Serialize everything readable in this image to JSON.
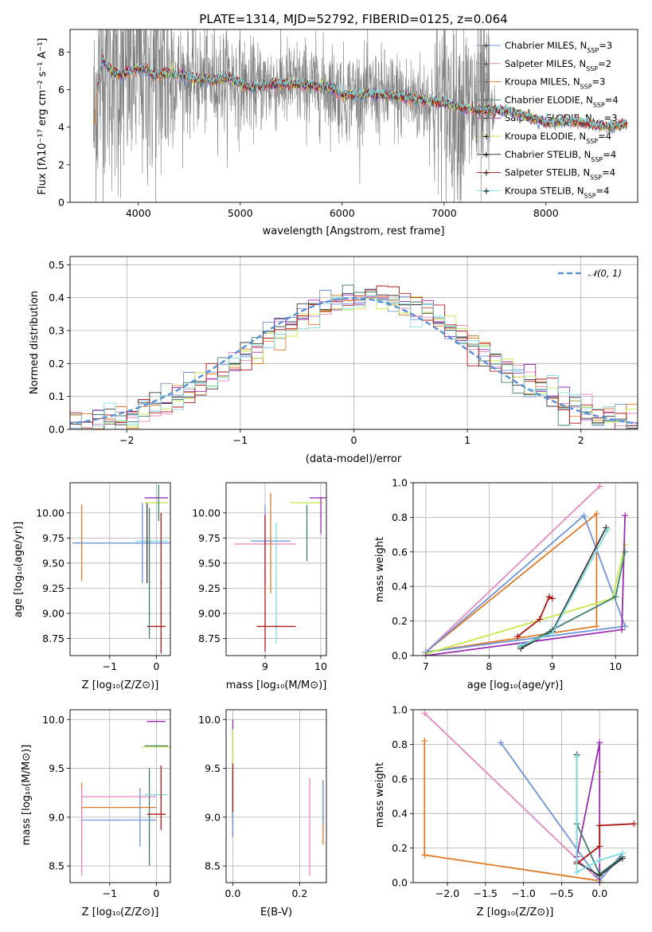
{
  "colors": {
    "chabrier_miles": "#6f94d8",
    "salpeter_miles": "#e58ac0",
    "kroupa_miles": "#e07b2a",
    "chabrier_elodie": "#3f7f6f",
    "salpeter_elodie": "#9a2fb0",
    "kroupa_elodie": "#c6e84a",
    "chabrier_stelib": "#3a3a3a",
    "salpeter_stelib": "#b01818",
    "kroupa_stelib": "#7fdde4",
    "data": "#808080",
    "gaussian": "#5a8fd6"
  },
  "legend": [
    {
      "label": "Chabrier MILES, N",
      "sub": "SSP",
      "tail": "=3",
      "color": "#6f94d8"
    },
    {
      "label": "Salpeter MILES, N",
      "sub": "SSP",
      "tail": "=2",
      "color": "#e58ac0"
    },
    {
      "label": "Kroupa MILES, N",
      "sub": "SSP",
      "tail": "=3",
      "color": "#e07b2a"
    },
    {
      "label": "Chabrier ELODIE, N",
      "sub": "SSP",
      "tail": "=4",
      "color": "#3f7f6f"
    },
    {
      "label": "Salpeter ELODIE, N",
      "sub": "SSP",
      "tail": "=3",
      "color": "#9a2fb0"
    },
    {
      "label": "Kroupa ELODIE, N",
      "sub": "SSP",
      "tail": "=4",
      "color": "#c6e84a"
    },
    {
      "label": "Chabrier STELIB, N",
      "sub": "SSP",
      "tail": "=4",
      "color": "#3a3a3a"
    },
    {
      "label": "Salpeter STELIB, N",
      "sub": "SSP",
      "tail": "=4",
      "color": "#b01818"
    },
    {
      "label": "Kroupa STELIB, N",
      "sub": "SSP",
      "tail": "=4",
      "color": "#7fdde4"
    }
  ],
  "chart_data": [
    {
      "id": "spectrum",
      "type": "line",
      "title": "PLATE=1314, MJD=52792, FIBERID=0125, z=0.064",
      "xlabel": "wavelength [Angstrom, rest frame]",
      "ylabel": "Flux [fλ10⁻¹⁷ erg cm⁻² s⁻¹ A⁻¹]",
      "xlim": [
        3330,
        8900
      ],
      "ylim": [
        0,
        9.2
      ],
      "xticks": [
        4000,
        5000,
        6000,
        7000,
        8000
      ],
      "yticks": [
        0,
        2,
        4,
        6,
        8
      ],
      "model_knots": [
        [
          3580,
          5.6
        ],
        [
          3650,
          7.6
        ],
        [
          3750,
          6.9
        ],
        [
          3850,
          6.8
        ],
        [
          3950,
          7.0
        ],
        [
          4050,
          7.1
        ],
        [
          4150,
          6.8
        ],
        [
          4300,
          6.9
        ],
        [
          4500,
          6.6
        ],
        [
          4700,
          6.5
        ],
        [
          4900,
          6.6
        ],
        [
          5100,
          6.1
        ],
        [
          5300,
          6.3
        ],
        [
          5500,
          6.3
        ],
        [
          5700,
          6.2
        ],
        [
          5900,
          6.1
        ],
        [
          6000,
          5.7
        ],
        [
          6200,
          5.8
        ],
        [
          6400,
          5.7
        ],
        [
          6600,
          5.6
        ],
        [
          6800,
          5.4
        ],
        [
          7000,
          5.3
        ],
        [
          7200,
          5.0
        ],
        [
          7400,
          4.9
        ],
        [
          7600,
          4.9
        ],
        [
          7800,
          4.6
        ],
        [
          8000,
          4.2
        ],
        [
          8200,
          4.3
        ],
        [
          8400,
          4.2
        ],
        [
          8600,
          4.0
        ],
        [
          8800,
          4.2
        ]
      ]
    },
    {
      "id": "residuals",
      "type": "step",
      "xlabel": "(data-model)/error",
      "ylabel": "Normed distribution",
      "xlim": [
        -2.5,
        2.5
      ],
      "ylim": [
        0,
        0.525
      ],
      "xticks": [
        -2,
        -1,
        0,
        1,
        2
      ],
      "yticks": [
        0.0,
        0.1,
        0.2,
        0.3,
        0.4,
        0.5
      ],
      "gaussian_label": "𝒩(0, 1)"
    },
    {
      "id": "age_vs_Z",
      "type": "errorbar",
      "xlabel": "Z [log₁₀(Z/Z⊙)]",
      "ylabel": "age  [log₁₀(age/yr)]",
      "xlim": [
        -1.85,
        0.3
      ],
      "ylim": [
        8.58,
        10.3
      ],
      "xticks": [
        -1,
        0
      ],
      "yticks": [
        8.75,
        9.0,
        9.25,
        9.5,
        9.75,
        10.0
      ],
      "points": [
        {
          "x": -1.6,
          "y": 9.7,
          "xerr": 0.0,
          "yerr": 0.38,
          "c": "kroupa_miles"
        },
        {
          "x": -0.4,
          "y": 9.7,
          "xerr": 1.4,
          "yerr": 0.0,
          "c": "chabrier_miles"
        },
        {
          "x": -0.1,
          "y": 9.72,
          "xerr": 0.35,
          "yerr": 0.0,
          "c": "kroupa_stelib"
        },
        {
          "x": -0.2,
          "y": 9.7,
          "xerr": 0.0,
          "yerr": 0.4,
          "c": "chabrier_stelib"
        },
        {
          "x": -0.3,
          "y": 9.7,
          "xerr": 0.0,
          "yerr": 0.4,
          "c": "chabrier_miles"
        },
        {
          "x": 0.0,
          "y": 10.15,
          "xerr": 0.25,
          "yerr": 0.0,
          "c": "salpeter_elodie"
        },
        {
          "x": 0.0,
          "y": 10.1,
          "xerr": 0.25,
          "yerr": 0.0,
          "c": "kroupa_elodie"
        },
        {
          "x": 0.05,
          "y": 10.1,
          "xerr": 0.0,
          "yerr": 0.18,
          "c": "chabrier_elodie"
        },
        {
          "x": 0.1,
          "y": 9.3,
          "xerr": 0.0,
          "yerr": 0.7,
          "c": "salpeter_stelib"
        },
        {
          "x": 0.0,
          "y": 8.87,
          "xerr": 0.2,
          "yerr": 0.0,
          "c": "salpeter_stelib"
        },
        {
          "x": -0.15,
          "y": 9.4,
          "xerr": 0.0,
          "yerr": 0.65,
          "c": "chabrier_elodie"
        }
      ]
    },
    {
      "id": "age_vs_mass",
      "type": "errorbar",
      "xlabel": "mass [log₁₀(M/M⊙)]",
      "ylabel": "",
      "xlim": [
        8.3,
        10.1
      ],
      "ylim": [
        8.58,
        10.3
      ],
      "xticks": [
        9,
        10
      ],
      "yticks": [
        8.75,
        9.0,
        9.25,
        9.5,
        9.75,
        10.0
      ],
      "points": [
        {
          "x": 9.0,
          "y": 9.69,
          "xerr": 0.55,
          "yerr": 0.0,
          "c": "salpeter_miles"
        },
        {
          "x": 9.1,
          "y": 9.72,
          "xerr": 0.35,
          "yerr": 0.0,
          "c": "chabrier_miles"
        },
        {
          "x": 9.0,
          "y": 9.7,
          "xerr": 0.0,
          "yerr": 0.38,
          "c": "chabrier_miles"
        },
        {
          "x": 9.1,
          "y": 9.7,
          "xerr": 0.0,
          "yerr": 0.5,
          "c": "kroupa_miles"
        },
        {
          "x": 9.2,
          "y": 9.3,
          "xerr": 0.0,
          "yerr": 0.6,
          "c": "kroupa_stelib"
        },
        {
          "x": 9.0,
          "y": 9.3,
          "xerr": 0.0,
          "yerr": 0.68,
          "c": "salpeter_stelib"
        },
        {
          "x": 9.2,
          "y": 8.87,
          "xerr": 0.35,
          "yerr": 0.0,
          "c": "salpeter_stelib"
        },
        {
          "x": 9.75,
          "y": 10.1,
          "xerr": 0.3,
          "yerr": 0.0,
          "c": "kroupa_elodie"
        },
        {
          "x": 9.75,
          "y": 9.8,
          "xerr": 0.0,
          "yerr": 0.28,
          "c": "chabrier_elodie"
        },
        {
          "x": 10.0,
          "y": 10.15,
          "xerr": 0.2,
          "yerr": 0.0,
          "c": "salpeter_elodie"
        },
        {
          "x": 10.0,
          "y": 9.97,
          "xerr": 0.0,
          "yerr": 0.18,
          "c": "salpeter_elodie"
        }
      ]
    },
    {
      "id": "weight_vs_age",
      "type": "line",
      "xlabel": "age  [log₁₀(age/yr)]",
      "ylabel": "mass weight",
      "xlim": [
        6.8,
        10.35
      ],
      "ylim": [
        0,
        1.0
      ],
      "xticks": [
        7,
        8,
        9,
        10
      ],
      "yticks": [
        0.0,
        0.2,
        0.4,
        0.6,
        0.8,
        1.0
      ],
      "series": [
        {
          "c": "salpeter_miles",
          "x": [
            7.0,
            9.75
          ],
          "y": [
            0.02,
            0.98
          ]
        },
        {
          "c": "kroupa_miles",
          "x": [
            7.0,
            9.7,
            9.7,
            7.0
          ],
          "y": [
            0.02,
            0.82,
            0.17,
            0.02
          ]
        },
        {
          "c": "chabrier_miles",
          "x": [
            7.0,
            9.5,
            10.15,
            7.0
          ],
          "y": [
            0.02,
            0.81,
            0.17,
            0.02
          ]
        },
        {
          "c": "kroupa_elodie",
          "x": [
            7.0,
            9.95,
            10.15
          ],
          "y": [
            0.01,
            0.33,
            0.64
          ]
        },
        {
          "c": "salpeter_elodie",
          "x": [
            7.0,
            10.1,
            10.15
          ],
          "y": [
            0.0,
            0.15,
            0.81
          ]
        },
        {
          "c": "chabrier_elodie",
          "x": [
            8.5,
            9.0,
            10.0,
            10.15
          ],
          "y": [
            0.05,
            0.15,
            0.34,
            0.6
          ]
        },
        {
          "c": "chabrier_stelib",
          "x": [
            8.5,
            9.0,
            9.85
          ],
          "y": [
            0.04,
            0.14,
            0.74
          ]
        },
        {
          "c": "salpeter_stelib",
          "x": [
            8.45,
            8.8,
            8.95,
            9.0
          ],
          "y": [
            0.11,
            0.21,
            0.34,
            0.33
          ]
        },
        {
          "c": "kroupa_stelib",
          "x": [
            8.5,
            9.0,
            9.88
          ],
          "y": [
            0.06,
            0.13,
            0.73
          ]
        }
      ]
    },
    {
      "id": "mass_vs_Z",
      "type": "errorbar",
      "xlabel": "Z [log₁₀(Z/Z⊙)]",
      "ylabel": "mass [log₁₀(M/M⊙)]",
      "xlim": [
        -1.85,
        0.3
      ],
      "ylim": [
        8.33,
        10.1
      ],
      "xticks": [
        -1,
        0
      ],
      "yticks": [
        8.5,
        9.0,
        9.5,
        10.0
      ],
      "points": [
        {
          "x": -1.6,
          "y": 9.21,
          "xerr": 0.0,
          "yerr": 0.0,
          "c": "salpeter_miles"
        },
        {
          "x": -1.6,
          "y": 9.05,
          "xerr": 0.0,
          "yerr": 0.3,
          "c": "kroupa_miles"
        },
        {
          "x": -1.6,
          "y": 8.85,
          "xerr": 0.0,
          "yerr": 0.45,
          "c": "salpeter_miles"
        },
        {
          "x": -0.8,
          "y": 9.21,
          "xerr": 0.8,
          "yerr": 0.0,
          "c": "salpeter_miles"
        },
        {
          "x": -0.8,
          "y": 9.1,
          "xerr": 0.8,
          "yerr": 0.0,
          "c": "kroupa_miles"
        },
        {
          "x": -0.8,
          "y": 8.97,
          "xerr": 0.8,
          "yerr": 0.0,
          "c": "chabrier_miles"
        },
        {
          "x": -0.35,
          "y": 9.0,
          "xerr": 0.0,
          "yerr": 0.3,
          "c": "chabrier_miles"
        },
        {
          "x": -0.15,
          "y": 9.0,
          "xerr": 0.0,
          "yerr": 0.5,
          "c": "chabrier_elodie"
        },
        {
          "x": 0.0,
          "y": 9.23,
          "xerr": 0.25,
          "yerr": 0.0,
          "c": "kroupa_stelib"
        },
        {
          "x": 0.0,
          "y": 9.72,
          "xerr": 0.3,
          "yerr": 0.0,
          "c": "kroupa_elodie"
        },
        {
          "x": 0.0,
          "y": 9.73,
          "xerr": 0.25,
          "yerr": 0.0,
          "c": "chabrier_elodie"
        },
        {
          "x": 0.0,
          "y": 9.98,
          "xerr": 0.2,
          "yerr": 0.0,
          "c": "salpeter_elodie"
        },
        {
          "x": 0.1,
          "y": 9.2,
          "xerr": 0.0,
          "yerr": 0.33,
          "c": "salpeter_stelib"
        },
        {
          "x": 0.0,
          "y": 9.03,
          "xerr": 0.2,
          "yerr": 0.0,
          "c": "salpeter_stelib"
        }
      ]
    },
    {
      "id": "mass_vs_ebv",
      "type": "errorbar",
      "xlabel": "E(B-V)",
      "ylabel": "",
      "xlim": [
        -0.02,
        0.28
      ],
      "ylim": [
        8.33,
        10.1
      ],
      "xticks": [
        0.0,
        0.2
      ],
      "yticks": [
        8.5,
        9.0,
        9.5,
        10.0
      ],
      "points": [
        {
          "x": 0.0,
          "y": 9.4,
          "xerr": 0.0,
          "yerr": 0.6,
          "c": "salpeter_elodie"
        },
        {
          "x": 0.0,
          "y": 9.6,
          "xerr": 0.0,
          "yerr": 0.3,
          "c": "kroupa_elodie"
        },
        {
          "x": 0.0,
          "y": 9.1,
          "xerr": 0.0,
          "yerr": 0.3,
          "c": "chabrier_miles"
        },
        {
          "x": 0.0,
          "y": 9.3,
          "xerr": 0.0,
          "yerr": 0.25,
          "c": "salpeter_stelib"
        },
        {
          "x": 0.23,
          "y": 8.9,
          "xerr": 0.0,
          "yerr": 0.5,
          "c": "salpeter_miles"
        },
        {
          "x": 0.27,
          "y": 9.05,
          "xerr": 0.0,
          "yerr": 0.33,
          "c": "kroupa_miles"
        },
        {
          "x": 0.27,
          "y": 9.15,
          "xerr": 0.0,
          "yerr": 0.22,
          "c": "chabrier_miles"
        }
      ]
    },
    {
      "id": "weight_vs_Z",
      "type": "line",
      "xlabel": "Z [log₁₀(Z/Z⊙)]",
      "ylabel": "mass weight",
      "xlim": [
        -2.45,
        0.5
      ],
      "ylim": [
        0,
        1.0
      ],
      "xticks": [
        -2.0,
        -1.5,
        -1.0,
        -0.5,
        0.0
      ],
      "yticks": [
        0.0,
        0.2,
        0.4,
        0.6,
        0.8,
        1.0
      ],
      "series": [
        {
          "c": "salpeter_miles",
          "x": [
            -2.3,
            0.0
          ],
          "y": [
            0.98,
            0.01
          ]
        },
        {
          "c": "kroupa_miles",
          "x": [
            -2.3,
            -2.3,
            0.0
          ],
          "y": [
            0.82,
            0.16,
            0.01
          ]
        },
        {
          "c": "chabrier_miles",
          "x": [
            -1.3,
            0.0,
            0.3
          ],
          "y": [
            0.81,
            0.01,
            0.17
          ]
        },
        {
          "c": "kroupa_elodie",
          "x": [
            0.0,
            0.0,
            0.0
          ],
          "y": [
            0.64,
            0.33,
            0.01
          ]
        },
        {
          "c": "salpeter_elodie",
          "x": [
            -0.3,
            0.0,
            0.0
          ],
          "y": [
            0.15,
            0.81,
            0.0
          ]
        },
        {
          "c": "chabrier_elodie",
          "x": [
            -0.3,
            0.0,
            0.3
          ],
          "y": [
            0.34,
            0.05,
            0.15
          ]
        },
        {
          "c": "chabrier_stelib",
          "x": [
            -0.3,
            -0.3,
            0.0,
            0.3
          ],
          "y": [
            0.74,
            0.12,
            0.04,
            0.14
          ]
        },
        {
          "c": "salpeter_stelib",
          "x": [
            -0.3,
            0.0,
            0.0,
            0.45
          ],
          "y": [
            0.11,
            0.21,
            0.33,
            0.34
          ]
        },
        {
          "c": "kroupa_stelib",
          "x": [
            -0.3,
            -0.3,
            0.0,
            0.3
          ],
          "y": [
            0.73,
            0.06,
            0.13,
            0.17
          ]
        }
      ]
    }
  ]
}
